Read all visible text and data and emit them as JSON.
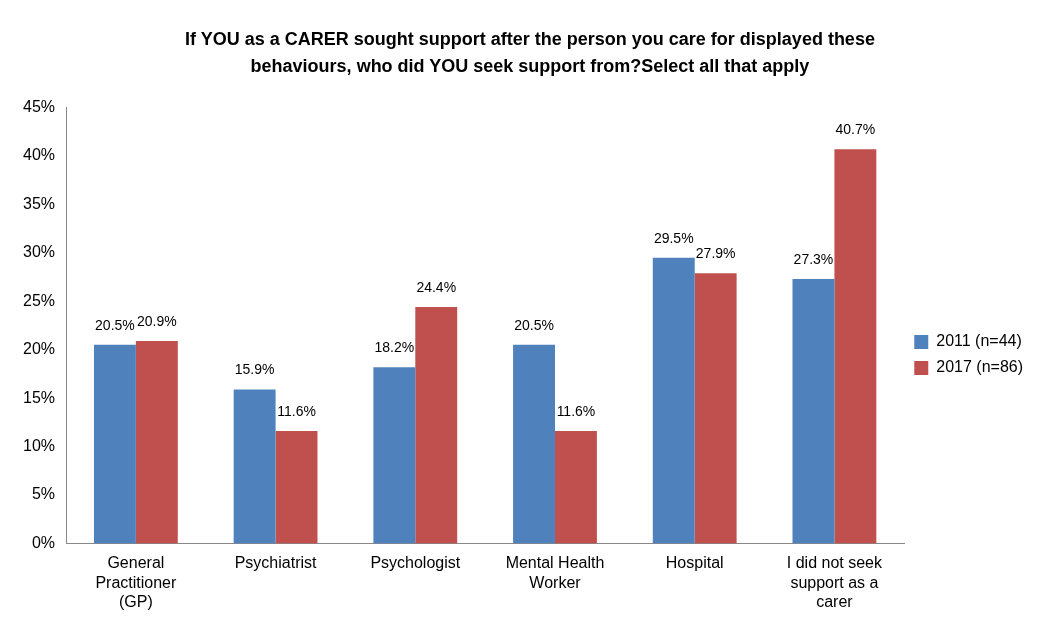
{
  "chart_data": {
    "type": "bar",
    "title": "If YOU as a CARER sought support after the person you care for displayed these behaviours, who did YOU seek support from?Select all that apply",
    "categories": [
      "General Practitioner (GP)",
      "Psychiatrist",
      "Psychologist",
      "Mental Health Worker",
      "Hospital",
      "I did not seek support as a carer"
    ],
    "series": [
      {
        "name": "2011 (n=44)",
        "color": "#4f81bd",
        "values": [
          20.5,
          15.9,
          18.2,
          20.5,
          29.5,
          27.3
        ],
        "value_labels": [
          "20.5%",
          "15.9%",
          "18.2%",
          "20.5%",
          "29.5%",
          "27.3%"
        ]
      },
      {
        "name": "2017 (n=86)",
        "color": "#c0504d",
        "values": [
          20.9,
          11.6,
          24.4,
          11.6,
          27.9,
          40.7
        ],
        "value_labels": [
          "20.9%",
          "11.6%",
          "24.4%",
          "11.6%",
          "27.9%",
          "40.7%"
        ]
      }
    ],
    "ylim": [
      0,
      45
    ],
    "yticks": [
      {
        "value": 0,
        "label": "0%"
      },
      {
        "value": 5,
        "label": "5%"
      },
      {
        "value": 10,
        "label": "10%"
      },
      {
        "value": 15,
        "label": "15%"
      },
      {
        "value": 20,
        "label": "20%"
      },
      {
        "value": 25,
        "label": "25%"
      },
      {
        "value": 30,
        "label": "30%"
      },
      {
        "value": 35,
        "label": "35%"
      },
      {
        "value": 40,
        "label": "40%"
      },
      {
        "value": 45,
        "label": "45%"
      }
    ],
    "grid": false,
    "legend": "right"
  }
}
